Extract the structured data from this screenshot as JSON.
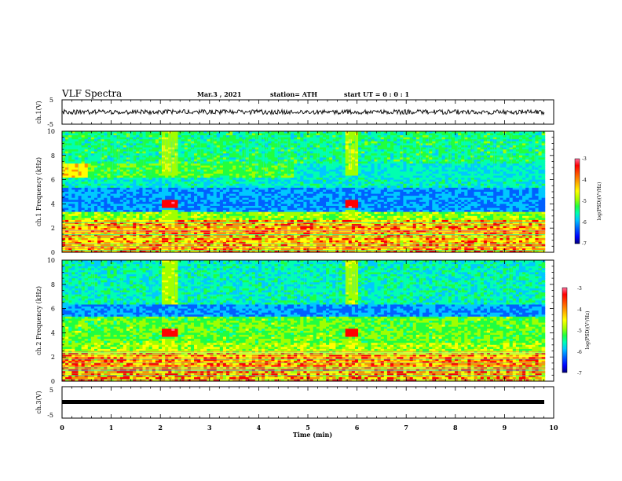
{
  "header": {
    "title": "VLF Spectra",
    "date": "Mar.3  , 2021",
    "station": "station= ATH",
    "start_time": "start  UT =   0 : 0  : 1"
  },
  "colorbar": {
    "label": "log(PSD)(V²/Hz)",
    "ticks": [
      "-3",
      "-4",
      "-5",
      "-6",
      "-7"
    ],
    "colors": [
      "#000000",
      "#00007a",
      "#0000ff",
      "#0060ff",
      "#00c8ff",
      "#00ffb0",
      "#20ff40",
      "#a0ff00",
      "#ffff00",
      "#ff9000",
      "#ff0000",
      "#ff70a0"
    ]
  },
  "chart_data": [
    {
      "type": "line",
      "panel": "ch1-waveform",
      "ylabel": "ch.1(V)",
      "yticks": [
        "5",
        "-5"
      ],
      "ylim": [
        -5,
        5
      ],
      "x_range_min": [
        0,
        10
      ],
      "series": [
        {
          "x": [
            0,
            9.82
          ],
          "y": [
            0,
            0
          ]
        }
      ]
    },
    {
      "type": "heatmap",
      "panel": "ch1-spectrogram",
      "ylabel": "ch.1  Frequency  (kHz)",
      "yticks": [
        "0",
        "2",
        "4",
        "6",
        "8",
        "10"
      ],
      "ylim_khz": [
        0,
        10
      ],
      "xlim_min": [
        0,
        10
      ],
      "data_end_min": 9.82,
      "color_scale_log_psd": [
        -7,
        -3
      ],
      "bursts_min": [
        [
          2.0,
          2.35
        ],
        [
          5.75,
          6.05
        ]
      ],
      "tone_khz": 4.0
    },
    {
      "type": "heatmap",
      "panel": "ch2-spectrogram",
      "ylabel": "ch.2  Frequency  (kHz)",
      "yticks": [
        "0",
        "2",
        "4",
        "6",
        "8",
        "10"
      ],
      "ylim_khz": [
        0,
        10
      ],
      "xlim_min": [
        0,
        10
      ],
      "data_end_min": 9.82,
      "color_scale_log_psd": [
        -7,
        -3
      ],
      "bursts_min": [
        [
          2.0,
          2.35
        ],
        [
          5.75,
          6.05
        ]
      ],
      "tone_khz": 4.0
    },
    {
      "type": "line",
      "panel": "ch3-waveform",
      "ylabel": "ch.3(V)",
      "yticks": [
        "5",
        "-5"
      ],
      "ylim": [
        -5,
        5
      ],
      "series": [
        {
          "x": [
            0,
            9.82
          ],
          "y": [
            -1,
            -1
          ]
        }
      ]
    }
  ],
  "xaxis": {
    "label": "Time  (min)",
    "ticks": [
      "0",
      "1",
      "2",
      "3",
      "4",
      "5",
      "6",
      "7",
      "8",
      "9",
      "10"
    ],
    "range": [
      0,
      10
    ]
  }
}
